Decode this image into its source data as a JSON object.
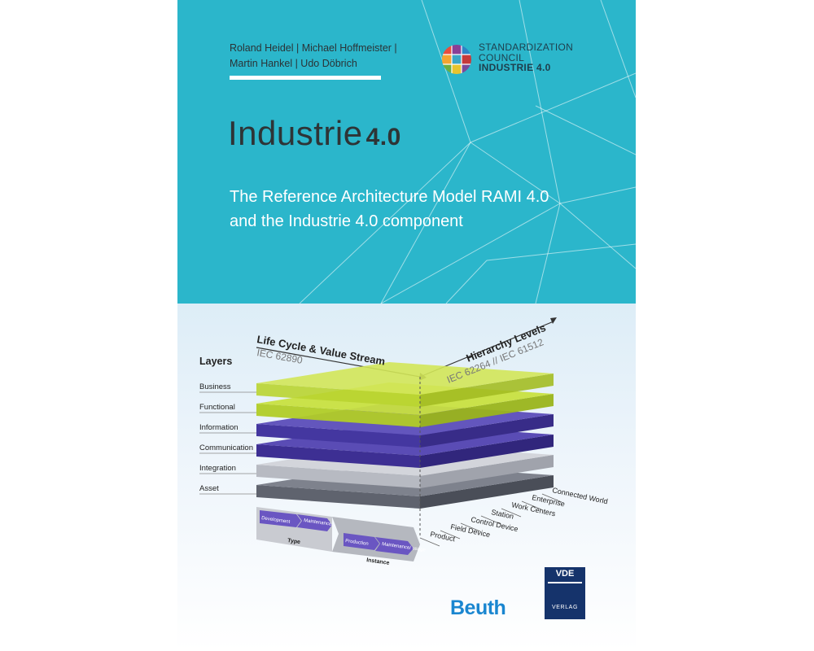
{
  "authors": {
    "line1": "Roland Heidel | Michael Hoffmeister |",
    "line2": "Martin Hankel | Udo Döbrich"
  },
  "council": {
    "line1": "STANDARDIZATION",
    "line2": "COUNCIL",
    "line3": "INDUSTRIE 4.0"
  },
  "title": {
    "main": "Industrie",
    "version": "4.0"
  },
  "subtitle": {
    "line1": "The Reference Architecture Model RAMI 4.0",
    "line2": "and the Industrie 4.0 component"
  },
  "diagram": {
    "axis_lifecycle": "Life Cycle & Value Stream",
    "axis_lifecycle_std": "IEC 62890",
    "axis_hierarchy": "Hierarchy Levels",
    "axis_hierarchy_std": "IEC 62264 // IEC 61512",
    "layers_heading": "Layers",
    "layers": [
      "Business",
      "Functional",
      "Information",
      "Communication",
      "Integration",
      "Asset"
    ],
    "hierarchy": [
      "Connected World",
      "Enterprise",
      "Work Centers",
      "Station",
      "Control Device",
      "Field Device",
      "Product"
    ],
    "lifecycle": {
      "type_label": "Type",
      "instance_label": "Instance",
      "development": "Development",
      "maintenance_usage_1": "Maintenance/ usage",
      "production": "Production",
      "maintenance_usage_2": "Maintenance/ usage"
    }
  },
  "publishers": {
    "beuth": "Beuth",
    "vde_top": "VDE",
    "vde_bottom": "VERLAG"
  },
  "colors": {
    "cyan_background": "#2bb6cb",
    "lime_layer": "#c3dc3c",
    "purple_layer": "#4c3ea8",
    "grey_layer": "#a9adb6",
    "beuth_blue": "#1a86d0",
    "vde_navy": "#15336b"
  }
}
